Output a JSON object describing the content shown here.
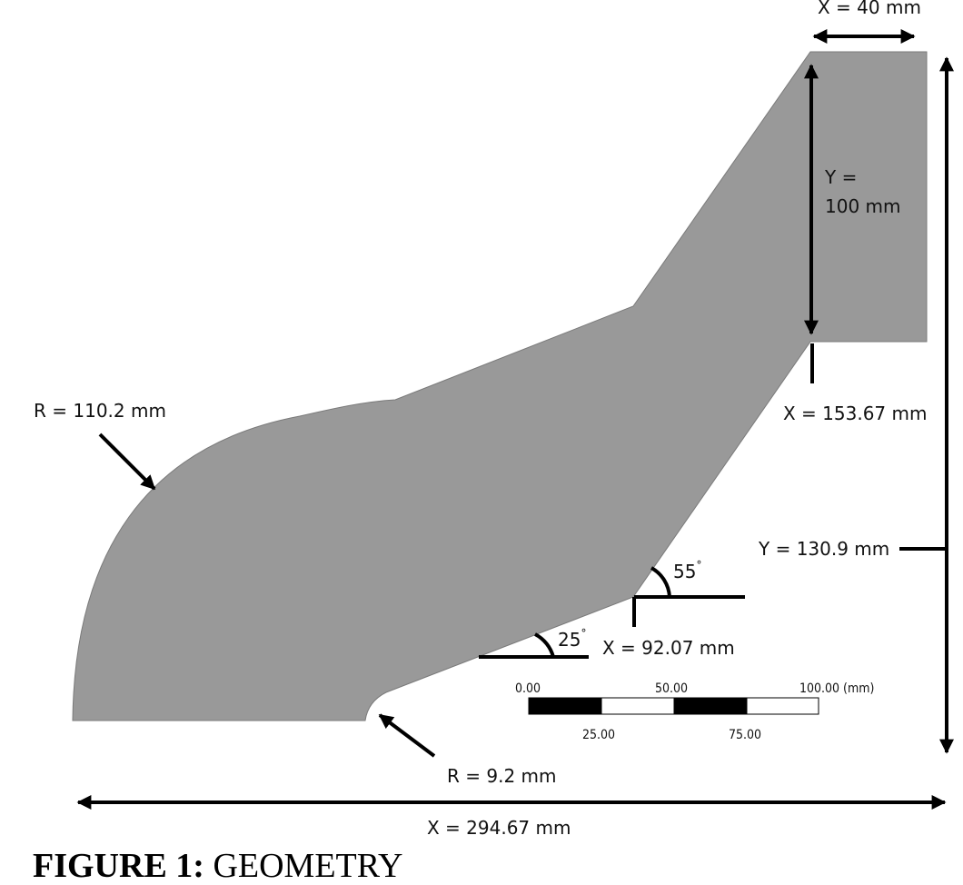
{
  "labels": {
    "top_width": "X = 40 mm",
    "top_height_line1": "Y =",
    "top_height_line2": "100 mm",
    "x_153": "X = 153.67 mm",
    "r_outer": "R = 110.2 mm",
    "y_total": "Y = 130.9 mm",
    "angle_55": "55",
    "angle_25": "25",
    "degree": "°",
    "x_92": "X = 92.07 mm",
    "r_inner": "R = 9.2 mm",
    "x_total": "X = 294.67 mm"
  },
  "scale_bar": {
    "top_labels": [
      "0.00",
      "50.00",
      "100.00 (mm)"
    ],
    "bottom_labels": [
      "25.00",
      "75.00"
    ]
  },
  "caption": {
    "prefix": "FIGURE 1:",
    "text": " GEOMETRY"
  },
  "colors": {
    "shape_fill": "#999999",
    "ink": "#000000"
  }
}
